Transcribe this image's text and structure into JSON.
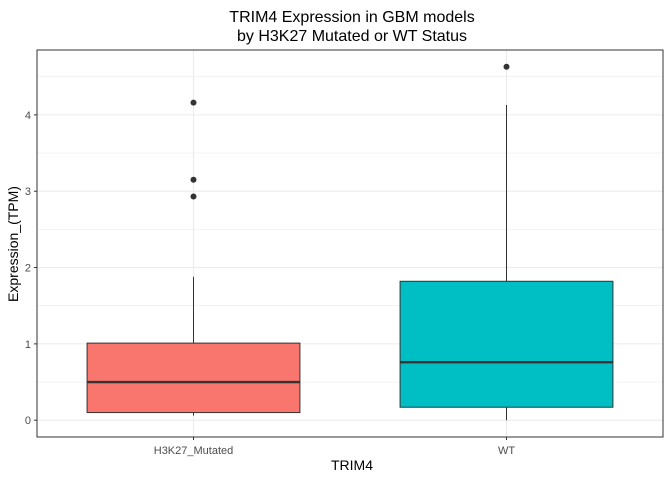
{
  "chart_data": {
    "type": "boxplot",
    "title_line1": "TRIM4 Expression in GBM models",
    "title_line2": "by H3K27 Mutated or WT Status",
    "xlabel": "TRIM4",
    "ylabel": "Expression_(TPM)",
    "categories": [
      "H3K27_Mutated",
      "WT"
    ],
    "ylim": [
      -0.22,
      4.85
    ],
    "yticks": [
      0,
      1,
      2,
      3,
      4
    ],
    "ytick_labels": [
      "0",
      "1",
      "2",
      "3",
      "4"
    ],
    "grid": true,
    "boxes": [
      {
        "category": "H3K27_Mutated",
        "min": 0.06,
        "q1": 0.1,
        "median": 0.5,
        "q3": 1.01,
        "max": 1.88,
        "outliers": [
          2.93,
          3.15,
          4.16
        ],
        "color": "#F8766D"
      },
      {
        "category": "WT",
        "min": 0.0,
        "q1": 0.17,
        "median": 0.76,
        "q3": 1.82,
        "max": 4.13,
        "outliers": [
          4.63
        ],
        "color": "#00BFC4"
      }
    ],
    "panel_border_color": "#333333",
    "grid_color": "#ebebeb"
  }
}
